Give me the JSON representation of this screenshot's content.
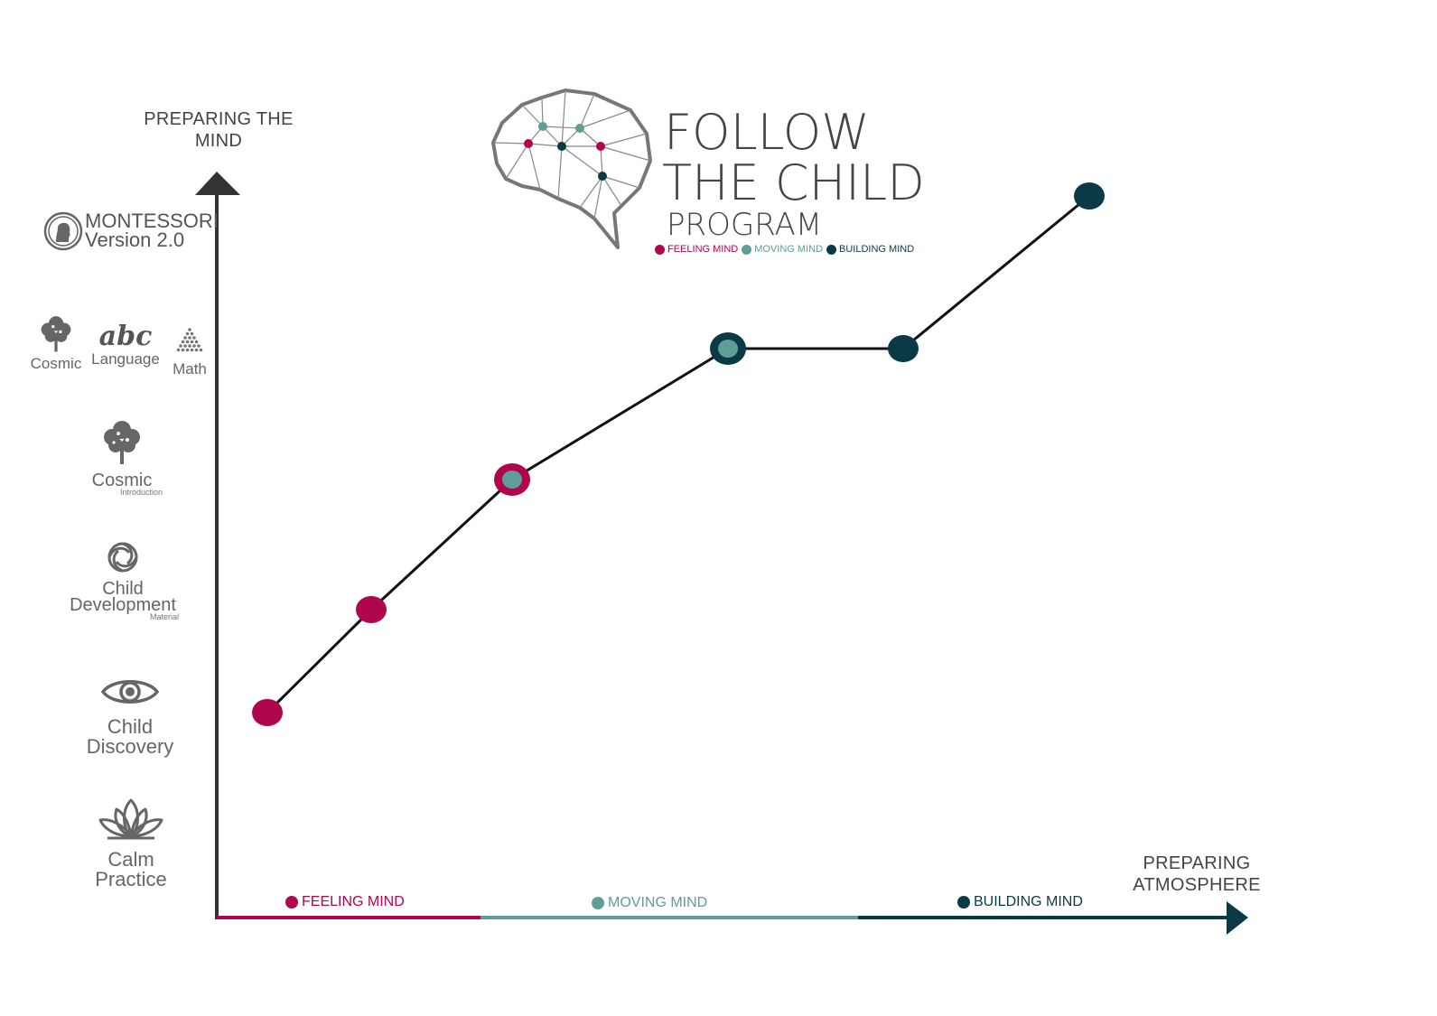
{
  "title": {
    "line1": "FOLLOW",
    "line2": "THE CHILD",
    "line3": "PROGRAM"
  },
  "legend": [
    {
      "label": "FEELING MIND",
      "color": "#b0064e"
    },
    {
      "label": "MOVING MIND",
      "color": "#5f9e98"
    },
    {
      "label": "BUILDING MIND",
      "color": "#0b3a47"
    }
  ],
  "y_axis": {
    "label_line1": "PREPARING THE",
    "label_line2": "MIND"
  },
  "x_axis": {
    "label_line1": "PREPARING",
    "label_line2": "ATMOSPHERE"
  },
  "y_levels": [
    {
      "icon": "lotus-icon",
      "line1": "Calm",
      "line2": "Practice"
    },
    {
      "icon": "eye-icon",
      "line1": "Child",
      "line2": "Discovery"
    },
    {
      "icon": "spiral-icon",
      "line1": "Child",
      "line2": "Development",
      "sub": "Material"
    },
    {
      "icon": "tree-icon",
      "line1": "Cosmic",
      "sub": "Introduction"
    },
    {
      "items": [
        {
          "icon": "tree-icon",
          "label": "Cosmic"
        },
        {
          "icon": "abc-icon",
          "glyph": "abc",
          "label": "Language"
        },
        {
          "icon": "triangle-beads-icon",
          "label": "Math"
        }
      ]
    },
    {
      "icon": "montessori-head-icon",
      "line1": "MONTESSORI",
      "line2": "Version 2.0"
    }
  ],
  "bands": [
    {
      "label": "FEELING MIND",
      "color": "#b0064e"
    },
    {
      "label": "MOVING MIND",
      "color": "#5f9e98"
    },
    {
      "label": "BUILDING MIND",
      "color": "#0b3a47"
    }
  ],
  "progression": [
    {
      "stage": "Feeling mind",
      "level": 1.0,
      "color": "#b0064e",
      "type": "solid"
    },
    {
      "stage": "Feeling mind",
      "level": 1.8,
      "color": "#b0064e",
      "type": "solid"
    },
    {
      "stage": "Feeling/Moving mind",
      "level": 2.8,
      "color": "#b0064e",
      "inner": "#5f9e98",
      "type": "ring"
    },
    {
      "stage": "Moving/Building mind",
      "level": 3.8,
      "color": "#0b3a47",
      "inner": "#5f9e98",
      "type": "ring"
    },
    {
      "stage": "Building mind",
      "level": 3.8,
      "color": "#0b3a47",
      "type": "solid"
    },
    {
      "stage": "Building mind",
      "level": 5.0,
      "color": "#0b3a47",
      "type": "solid"
    }
  ]
}
